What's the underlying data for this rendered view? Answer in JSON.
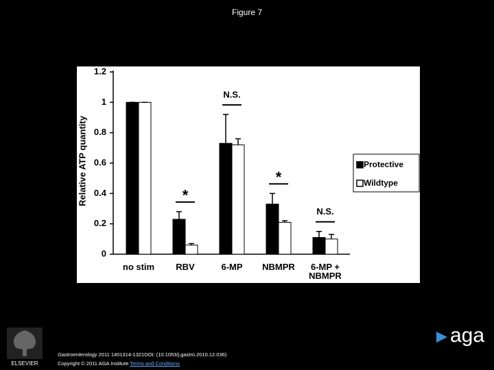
{
  "title": "Figure 7",
  "chart_data": {
    "type": "bar",
    "ylabel": "Relative ATP quantity",
    "categories": [
      "no stim",
      "RBV",
      "6-MP",
      "NBMPR",
      "6-MP + NBMPR"
    ],
    "series": [
      {
        "name": "Protective",
        "color": "#000000",
        "values": [
          1,
          0.23,
          0.73,
          0.33,
          0.11
        ],
        "errors": [
          0,
          0.05,
          0.19,
          0.07,
          0.04
        ]
      },
      {
        "name": "Wildtype",
        "color": "#ffffff",
        "values": [
          1,
          0.06,
          0.72,
          0.21,
          0.1
        ],
        "errors": [
          0,
          0.01,
          0.04,
          0.01,
          0.03
        ]
      }
    ],
    "annotations": [
      null,
      "*",
      "N.S.",
      "*",
      "N.S."
    ],
    "ylim": [
      0,
      1.2
    ],
    "yticks": [
      0,
      0.2,
      0.4,
      0.6,
      0.8,
      1,
      1.2
    ],
    "grid": false,
    "legend": "right"
  },
  "footer": {
    "journal": "Gastroenterology",
    "citation": "2011 1401314-1321DOI: (10.1053/j.gastro.2010.12.036)",
    "copyright": "Copyright © 2011 AGA Institute",
    "link": "Terms and Conditions",
    "publisher": "ELSEVIER",
    "logo": "aga"
  }
}
